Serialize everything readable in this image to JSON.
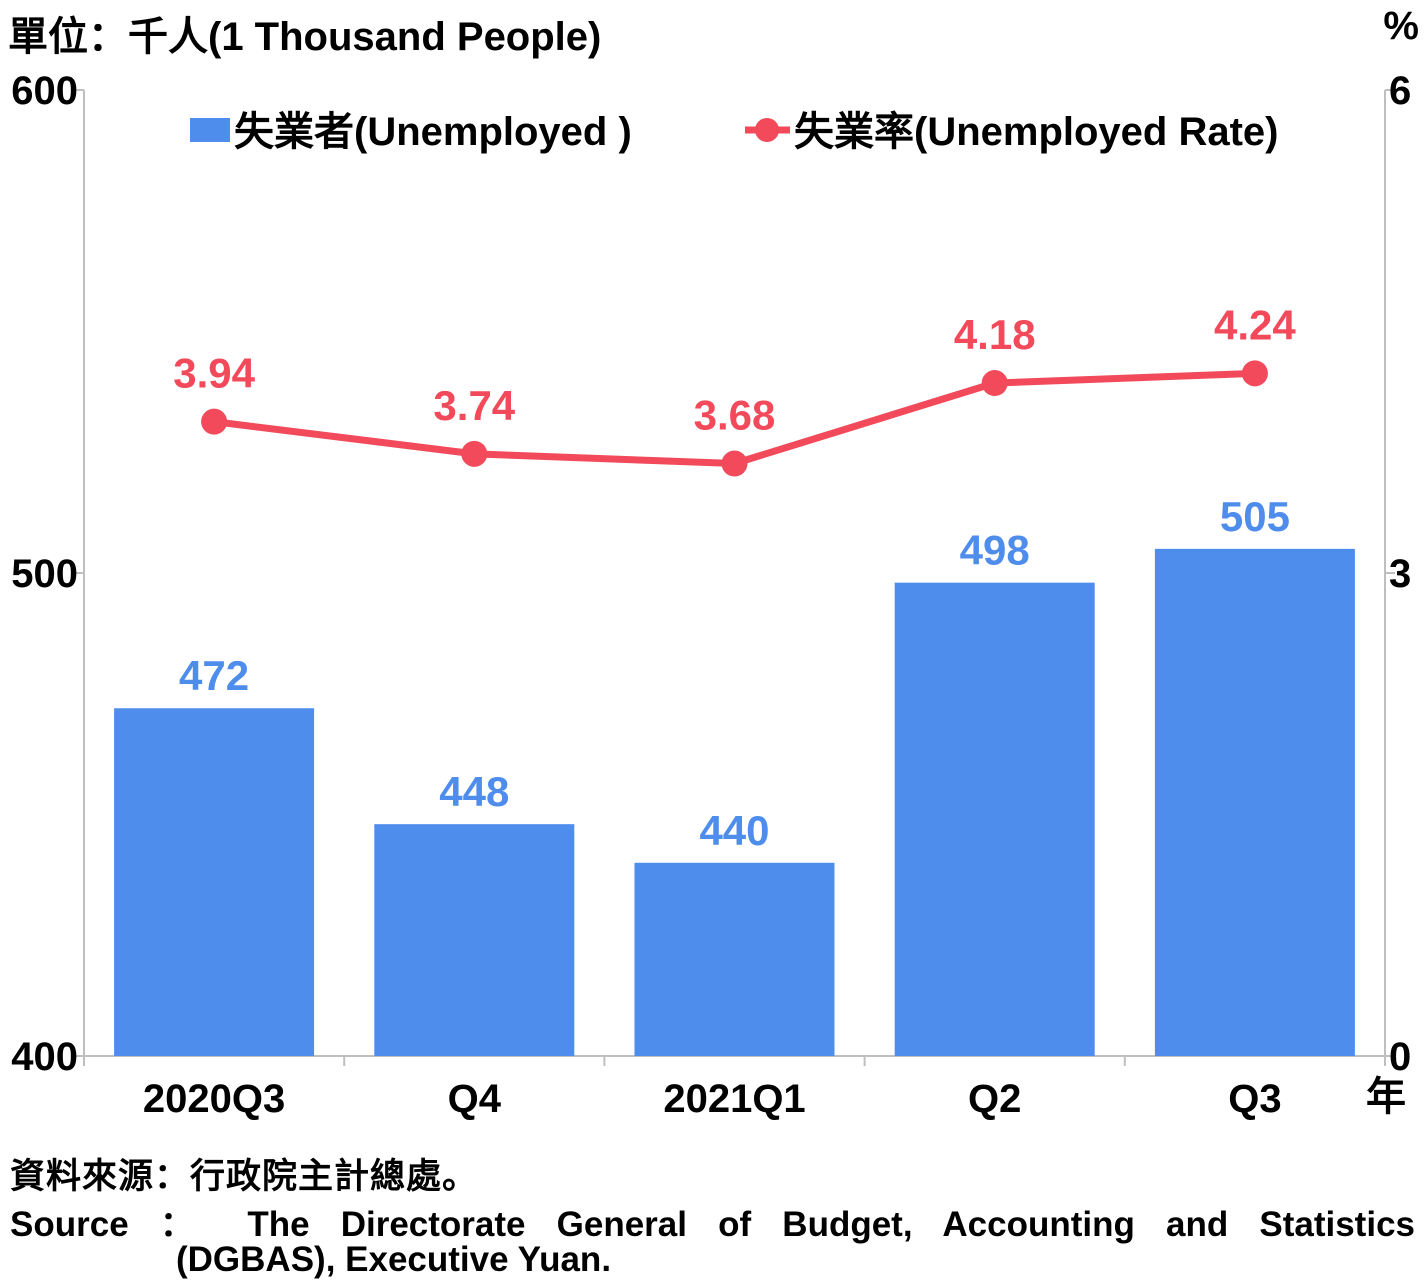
{
  "header": {
    "unit_left": "單位：千人(1 Thousand People)",
    "unit_right": "%"
  },
  "footer": {
    "source_zh": "資料來源：行政院主計總處。",
    "source_en_line1": "Source ： The Directorate General of Budget, Accounting and Statistics",
    "source_en_line2": "(DGBAS), Executive Yuan."
  },
  "colors": {
    "bar": "#4f8ded",
    "line": "#f24a5a",
    "axis": "#bfbfbf"
  },
  "chart_data": {
    "type": "bar",
    "categories": [
      "2020Q3",
      "Q4",
      "2021Q1",
      "Q2",
      "Q3"
    ],
    "x_unit_label": "年",
    "series": [
      {
        "name": "失業者(Unemployed )",
        "type": "bar",
        "axis": "left",
        "values": [
          472,
          448,
          440,
          498,
          505
        ],
        "labels": [
          "472",
          "448",
          "440",
          "498",
          "505"
        ]
      },
      {
        "name": "失業率(Unemployed Rate)",
        "type": "line",
        "axis": "right",
        "values": [
          3.94,
          3.74,
          3.68,
          4.18,
          4.24
        ],
        "labels": [
          "3.94",
          "3.74",
          "3.68",
          "4.18",
          "4.24"
        ]
      }
    ],
    "y_left": {
      "range": [
        400,
        600
      ],
      "ticks": [
        "400",
        "500",
        "600"
      ]
    },
    "y_right": {
      "range": [
        0,
        6
      ],
      "ticks": [
        "0",
        "3",
        "6"
      ]
    },
    "legend": {
      "position": "top",
      "entries": [
        "失業者(Unemployed )",
        "失業率(Unemployed Rate)"
      ]
    },
    "grid": false
  }
}
